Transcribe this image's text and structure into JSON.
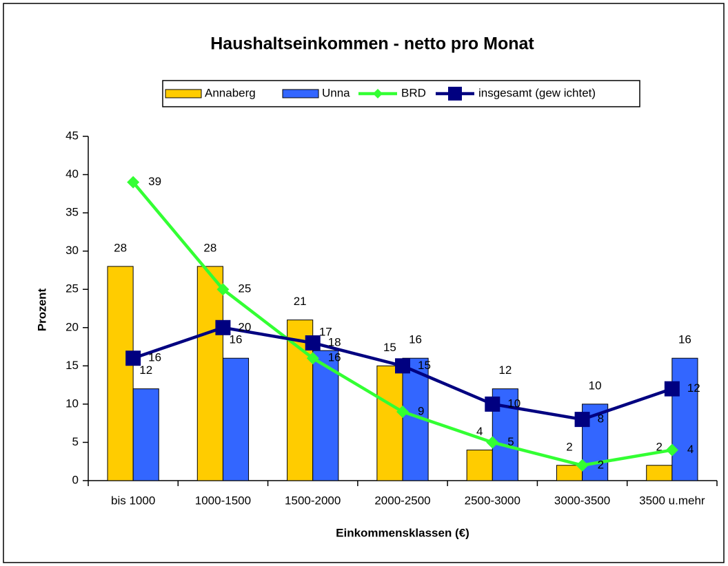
{
  "chart_data": {
    "type": "bar",
    "title": "Haushaltseinkommen - netto pro Monat",
    "x_label": "Einkommensklassen (€)",
    "y_label": "Prozent",
    "categories": [
      "bis 1000",
      "1000-1500",
      "1500-2000",
      "2000-2500",
      "2500-3000",
      "3000-3500",
      "3500 u.mehr"
    ],
    "series": [
      {
        "name": "Annaberg",
        "type": "bar",
        "color": "#ffcc00",
        "values": [
          28,
          28,
          21,
          15,
          4,
          2,
          2
        ]
      },
      {
        "name": "Unna",
        "type": "bar",
        "color": "#3366ff",
        "values": [
          12,
          16,
          17,
          16,
          12,
          10,
          16
        ]
      },
      {
        "name": "BRD",
        "type": "line",
        "marker": "diamond",
        "color": "#33ff33",
        "values": [
          39,
          25,
          16,
          9,
          5,
          2,
          4
        ]
      },
      {
        "name": "insgesamt (gew ichtet)",
        "type": "line",
        "marker": "square",
        "color": "#000080",
        "values": [
          16,
          20,
          18,
          15,
          10,
          8,
          12
        ]
      }
    ],
    "ylim": [
      0,
      45
    ],
    "yticks": [
      0,
      5,
      10,
      15,
      20,
      25,
      30,
      35,
      40,
      45
    ],
    "grid": false,
    "legend": "top"
  }
}
